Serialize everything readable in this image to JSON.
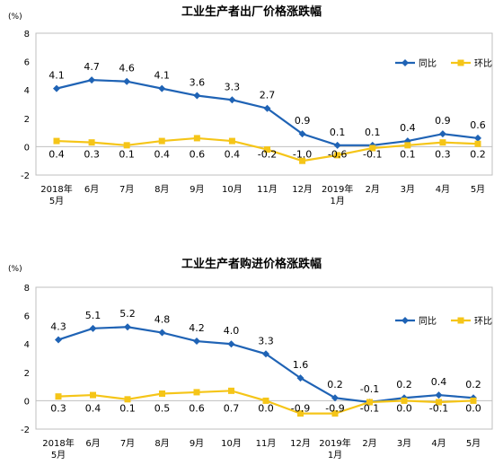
{
  "chart_data": [
    {
      "type": "line",
      "title": "工业生产者出厂价格涨跌幅",
      "unit": "(%)",
      "ylim": [
        -2,
        8
      ],
      "yticks": [
        "-2",
        "0",
        "2",
        "4",
        "6",
        "8"
      ],
      "grid": false,
      "legend_position": "top-right",
      "categories": [
        [
          "2018年",
          "5月"
        ],
        [
          "6月"
        ],
        [
          "7月"
        ],
        [
          "8月"
        ],
        [
          "9月"
        ],
        [
          "10月"
        ],
        [
          "11月"
        ],
        [
          "12月"
        ],
        [
          "2019年",
          "1月"
        ],
        [
          "2月"
        ],
        [
          "3月"
        ],
        [
          "4月"
        ],
        [
          "5月"
        ]
      ],
      "series": [
        {
          "name": "同比",
          "color": "#1f63b5",
          "marker": "diamond",
          "values": [
            4.1,
            4.7,
            4.6,
            4.1,
            3.6,
            3.3,
            2.7,
            0.9,
            0.1,
            0.1,
            0.4,
            0.9,
            0.6
          ],
          "labels": [
            "4.1",
            "4.7",
            "4.6",
            "4.1",
            "3.6",
            "3.3",
            "2.7",
            "0.9",
            "0.1",
            "0.1",
            "0.4",
            "0.9",
            "0.6"
          ]
        },
        {
          "name": "环比",
          "color": "#f5c518",
          "marker": "square",
          "values": [
            0.4,
            0.3,
            0.1,
            0.4,
            0.6,
            0.4,
            -0.2,
            -1.0,
            -0.6,
            -0.1,
            0.1,
            0.3,
            0.2
          ],
          "labels": [
            "0.4",
            "0.3",
            "0.1",
            "0.4",
            "0.6",
            "0.4",
            "-0.2",
            "-1.0",
            "-0.6",
            "-0.1",
            "0.1",
            "0.3",
            "0.2"
          ]
        }
      ]
    },
    {
      "type": "line",
      "title": "工业生产者购进价格涨跌幅",
      "unit": "(%)",
      "ylim": [
        -2,
        8
      ],
      "yticks": [
        "-2",
        "0",
        "2",
        "4",
        "6",
        "8"
      ],
      "grid": false,
      "legend_position": "top-right",
      "categories": [
        [
          "2018年",
          "5月"
        ],
        [
          "6月"
        ],
        [
          "7月"
        ],
        [
          "8月"
        ],
        [
          "9月"
        ],
        [
          "10月"
        ],
        [
          "11月"
        ],
        [
          "12月"
        ],
        [
          "2019年",
          "1月"
        ],
        [
          "2月"
        ],
        [
          "3月"
        ],
        [
          "4月"
        ],
        [
          "5月"
        ]
      ],
      "series": [
        {
          "name": "同比",
          "color": "#1f63b5",
          "marker": "diamond",
          "values": [
            4.3,
            5.1,
            5.2,
            4.8,
            4.2,
            4.0,
            3.3,
            1.6,
            0.2,
            -0.1,
            0.2,
            0.4,
            0.2
          ],
          "labels": [
            "4.3",
            "5.1",
            "5.2",
            "4.8",
            "4.2",
            "4.0",
            "3.3",
            "1.6",
            "0.2",
            "-0.1",
            "0.2",
            "0.4",
            "0.2"
          ]
        },
        {
          "name": "环比",
          "color": "#f5c518",
          "marker": "square",
          "values": [
            0.3,
            0.4,
            0.1,
            0.5,
            0.6,
            0.7,
            0.0,
            -0.9,
            -0.9,
            -0.1,
            0.0,
            -0.1,
            0.0
          ],
          "labels": [
            "0.3",
            "0.4",
            "0.1",
            "0.5",
            "0.6",
            "0.7",
            "0.0",
            "-0.9",
            "-0.9",
            "-0.1",
            "0.0",
            "-0.1",
            "0.0"
          ]
        }
      ]
    }
  ]
}
